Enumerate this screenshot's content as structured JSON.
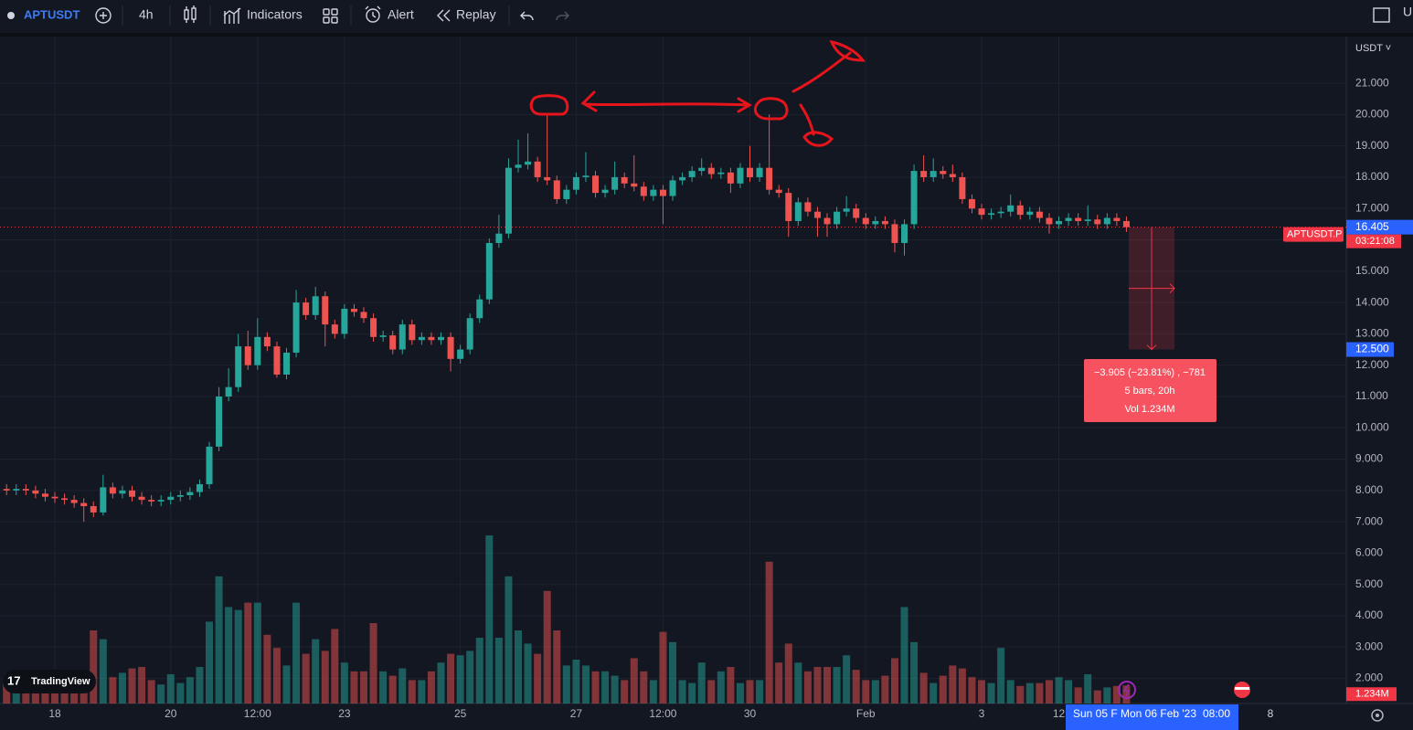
{
  "toolbar": {
    "symbol": "APTUSDT",
    "interval": "4h",
    "indicators": "Indicators",
    "alert": "Alert",
    "replay": "Replay",
    "right_cut": "U"
  },
  "price_axis": {
    "currency": "USDT ˅",
    "current_price": {
      "value": 16.405,
      "label": "16.405"
    },
    "countdown": "03:21:08",
    "symbol_tag": "APTUSDT.P",
    "measure_target": {
      "value": 12.5,
      "label": "12.500"
    },
    "volume_tag": "1.234M"
  },
  "measure": {
    "line1": "−3.905 (−23.81%) , −781",
    "line2": "5 bars, 20h",
    "line3": "Vol 1.234M"
  },
  "time_axis": {
    "crosshair_left": "Sun 05 F",
    "crosshair_date": "Mon 06 Feb '23",
    "crosshair_time": "08:00",
    "future_label": "8"
  },
  "logo": "TradingView",
  "chart_data": {
    "type": "candlestick",
    "up_color": "#26a69a",
    "down_color": "#ef5350",
    "ylim": [
      1.2,
      22.49
    ],
    "yticks": [
      {
        "value": 2,
        "label": "2.000"
      },
      {
        "value": 3,
        "label": "3.000"
      },
      {
        "value": 4,
        "label": "4.000"
      },
      {
        "value": 5,
        "label": "5.000"
      },
      {
        "value": 6,
        "label": "6.000"
      },
      {
        "value": 7,
        "label": "7.000"
      },
      {
        "value": 8,
        "label": "8.000"
      },
      {
        "value": 9,
        "label": "9.000"
      },
      {
        "value": 10,
        "label": "10.000"
      },
      {
        "value": 11,
        "label": "11.000"
      },
      {
        "value": 12,
        "label": "12.000"
      },
      {
        "value": 13,
        "label": "13.000"
      },
      {
        "value": 14,
        "label": "14.000"
      },
      {
        "value": 15,
        "label": "15.000"
      },
      {
        "value": 16,
        "label": "16.000"
      },
      {
        "value": 17,
        "label": "17.000"
      },
      {
        "value": 18,
        "label": "18.000"
      },
      {
        "value": 19,
        "label": "19.000"
      },
      {
        "value": 20,
        "label": "20.000"
      },
      {
        "value": 21,
        "label": "21.000"
      }
    ],
    "grid": true,
    "categories": [
      null,
      null,
      null,
      null,
      null,
      "18",
      null,
      null,
      null,
      null,
      null,
      null,
      null,
      null,
      null,
      null,
      null,
      "20",
      null,
      null,
      null,
      null,
      null,
      null,
      null,
      null,
      "12:00",
      null,
      null,
      null,
      null,
      null,
      null,
      null,
      null,
      "23",
      null,
      null,
      null,
      null,
      null,
      null,
      null,
      null,
      null,
      null,
      null,
      "25",
      null,
      null,
      null,
      null,
      null,
      null,
      null,
      null,
      null,
      null,
      null,
      "27",
      null,
      null,
      null,
      null,
      null,
      null,
      null,
      null,
      "12:00",
      null,
      null,
      null,
      null,
      null,
      null,
      null,
      null,
      "30",
      null,
      null,
      null,
      null,
      null,
      null,
      null,
      null,
      null,
      null,
      null,
      "Feb",
      null,
      null,
      null,
      null,
      null,
      null,
      null,
      null,
      null,
      null,
      null,
      "3",
      null,
      null,
      null,
      null,
      null,
      null,
      null,
      "12",
      null,
      null,
      null,
      null,
      null,
      null,
      null
    ],
    "candles": [
      [
        8.05,
        8.2,
        7.85,
        8.0
      ],
      [
        8.0,
        8.2,
        7.85,
        8.05
      ],
      [
        8.05,
        8.2,
        7.85,
        8.0
      ],
      [
        8.0,
        8.15,
        7.75,
        7.9
      ],
      [
        7.9,
        8.05,
        7.65,
        7.8
      ],
      [
        7.8,
        7.95,
        7.6,
        7.75
      ],
      [
        7.75,
        7.9,
        7.55,
        7.7
      ],
      [
        7.7,
        7.85,
        7.45,
        7.6
      ],
      [
        7.6,
        7.75,
        7.0,
        7.5
      ],
      [
        7.5,
        7.65,
        7.15,
        7.3
      ],
      [
        7.3,
        8.5,
        7.2,
        8.1
      ],
      [
        8.1,
        8.25,
        7.75,
        7.9
      ],
      [
        7.9,
        8.15,
        7.75,
        8.0
      ],
      [
        8.0,
        8.15,
        7.65,
        7.8
      ],
      [
        7.8,
        7.95,
        7.55,
        7.7
      ],
      [
        7.7,
        7.85,
        7.5,
        7.65
      ],
      [
        7.65,
        7.85,
        7.5,
        7.7
      ],
      [
        7.7,
        7.95,
        7.55,
        7.8
      ],
      [
        7.8,
        8.0,
        7.65,
        7.85
      ],
      [
        7.85,
        8.1,
        7.7,
        7.95
      ],
      [
        7.95,
        8.35,
        7.8,
        8.2
      ],
      [
        8.2,
        9.55,
        8.05,
        9.4
      ],
      [
        9.4,
        11.3,
        9.25,
        11.0
      ],
      [
        11.0,
        11.9,
        10.85,
        11.3
      ],
      [
        11.3,
        13.0,
        11.15,
        12.6
      ],
      [
        12.6,
        13.1,
        11.85,
        12.0
      ],
      [
        12.0,
        13.5,
        11.85,
        12.9
      ],
      [
        12.9,
        13.05,
        12.45,
        12.6
      ],
      [
        12.6,
        12.75,
        11.6,
        11.7
      ],
      [
        11.7,
        12.55,
        11.55,
        12.4
      ],
      [
        12.4,
        14.4,
        12.25,
        14.0
      ],
      [
        14.0,
        14.15,
        13.45,
        13.6
      ],
      [
        13.6,
        14.5,
        13.45,
        14.2
      ],
      [
        14.2,
        14.35,
        12.6,
        13.3
      ],
      [
        13.3,
        13.45,
        12.85,
        13.0
      ],
      [
        13.0,
        13.95,
        12.85,
        13.8
      ],
      [
        13.8,
        13.95,
        13.55,
        13.7
      ],
      [
        13.7,
        13.85,
        13.35,
        13.5
      ],
      [
        13.5,
        13.65,
        12.75,
        12.9
      ],
      [
        12.9,
        13.1,
        12.75,
        12.95
      ],
      [
        12.95,
        13.1,
        12.35,
        12.5
      ],
      [
        12.5,
        13.45,
        12.35,
        13.3
      ],
      [
        13.3,
        13.45,
        12.65,
        12.8
      ],
      [
        12.8,
        13.05,
        12.65,
        12.9
      ],
      [
        12.9,
        13.05,
        12.65,
        12.8
      ],
      [
        12.8,
        13.05,
        12.65,
        12.9
      ],
      [
        12.9,
        13.05,
        11.8,
        12.2
      ],
      [
        12.2,
        12.65,
        12.05,
        12.5
      ],
      [
        12.5,
        13.65,
        12.35,
        13.5
      ],
      [
        13.5,
        14.25,
        13.35,
        14.1
      ],
      [
        14.1,
        16.05,
        13.95,
        15.9
      ],
      [
        15.9,
        16.8,
        15.75,
        16.2
      ],
      [
        16.2,
        18.6,
        16.05,
        18.3
      ],
      [
        18.3,
        19.2,
        18.15,
        18.4
      ],
      [
        18.4,
        19.4,
        18.25,
        18.5
      ],
      [
        18.5,
        18.65,
        17.85,
        18.0
      ],
      [
        18.0,
        20.0,
        17.75,
        17.9
      ],
      [
        17.9,
        18.05,
        17.15,
        17.3
      ],
      [
        17.3,
        17.75,
        17.15,
        17.6
      ],
      [
        17.6,
        18.15,
        17.45,
        18.0
      ],
      [
        18.0,
        18.8,
        17.85,
        18.05
      ],
      [
        18.05,
        18.2,
        17.35,
        17.5
      ],
      [
        17.5,
        17.75,
        17.35,
        17.6
      ],
      [
        17.6,
        18.5,
        17.45,
        18.0
      ],
      [
        18.0,
        18.15,
        17.65,
        17.8
      ],
      [
        17.8,
        18.7,
        17.55,
        17.7
      ],
      [
        17.7,
        17.85,
        17.25,
        17.4
      ],
      [
        17.4,
        17.75,
        17.25,
        17.6
      ],
      [
        17.6,
        17.75,
        16.5,
        17.4
      ],
      [
        17.4,
        18.05,
        17.25,
        17.9
      ],
      [
        17.9,
        18.15,
        17.75,
        18.0
      ],
      [
        18.0,
        18.35,
        17.85,
        18.2
      ],
      [
        18.2,
        18.6,
        18.05,
        18.3
      ],
      [
        18.3,
        18.45,
        17.95,
        18.1
      ],
      [
        18.1,
        18.3,
        17.95,
        18.15
      ],
      [
        18.15,
        18.3,
        17.5,
        17.8
      ],
      [
        17.8,
        18.45,
        17.65,
        18.3
      ],
      [
        18.3,
        19.0,
        17.85,
        18.0
      ],
      [
        18.0,
        18.45,
        17.85,
        18.3
      ],
      [
        18.3,
        20.0,
        17.45,
        17.6
      ],
      [
        17.6,
        17.75,
        17.35,
        17.5
      ],
      [
        17.5,
        17.65,
        16.1,
        16.6
      ],
      [
        16.6,
        17.35,
        16.45,
        17.2
      ],
      [
        17.2,
        17.35,
        16.75,
        16.9
      ],
      [
        16.9,
        17.05,
        16.1,
        16.7
      ],
      [
        16.7,
        16.85,
        16.1,
        16.5
      ],
      [
        16.5,
        17.05,
        16.35,
        16.9
      ],
      [
        16.9,
        17.4,
        16.75,
        17.0
      ],
      [
        17.0,
        17.15,
        16.55,
        16.7
      ],
      [
        16.7,
        16.85,
        16.35,
        16.5
      ],
      [
        16.5,
        16.75,
        16.35,
        16.6
      ],
      [
        16.6,
        16.75,
        16.35,
        16.5
      ],
      [
        16.5,
        16.65,
        15.6,
        15.9
      ],
      [
        15.9,
        16.65,
        15.5,
        16.5
      ],
      [
        16.5,
        18.4,
        16.35,
        18.2
      ],
      [
        18.2,
        18.7,
        17.85,
        18.0
      ],
      [
        18.0,
        18.6,
        17.85,
        18.2
      ],
      [
        18.2,
        18.35,
        17.95,
        18.1
      ],
      [
        18.1,
        18.4,
        17.85,
        18.0
      ],
      [
        18.0,
        18.15,
        17.15,
        17.3
      ],
      [
        17.3,
        17.45,
        16.85,
        17.0
      ],
      [
        17.0,
        17.15,
        16.65,
        16.8
      ],
      [
        16.8,
        17.0,
        16.65,
        16.85
      ],
      [
        16.85,
        17.05,
        16.7,
        16.9
      ],
      [
        16.9,
        17.45,
        16.75,
        17.1
      ],
      [
        17.1,
        17.25,
        16.65,
        16.8
      ],
      [
        16.8,
        17.05,
        16.65,
        16.9
      ],
      [
        16.9,
        17.05,
        16.55,
        16.7
      ],
      [
        16.7,
        16.85,
        16.2,
        16.5
      ],
      [
        16.5,
        16.75,
        16.35,
        16.6
      ],
      [
        16.6,
        16.85,
        16.45,
        16.7
      ],
      [
        16.7,
        16.85,
        16.45,
        16.6
      ],
      [
        16.6,
        17.1,
        16.45,
        16.65
      ],
      [
        16.65,
        16.8,
        16.35,
        16.5
      ],
      [
        16.5,
        16.85,
        16.35,
        16.7
      ],
      [
        16.7,
        16.85,
        16.45,
        16.6
      ],
      [
        16.6,
        16.75,
        16.25,
        16.405
      ]
    ],
    "volume": [
      1.6,
      1.4,
      1.7,
      1.5,
      1.3,
      1.2,
      1.6,
      1.5,
      2.0,
      5.0,
      4.4,
      1.8,
      2.1,
      2.4,
      2.5,
      1.6,
      1.3,
      2.0,
      1.4,
      1.8,
      2.5,
      5.6,
      8.7,
      6.6,
      6.4,
      6.9,
      6.9,
      4.7,
      3.8,
      2.6,
      6.9,
      3.4,
      4.4,
      3.6,
      5.1,
      2.8,
      2.2,
      2.2,
      5.5,
      2.2,
      1.9,
      2.4,
      1.6,
      1.6,
      2.2,
      2.8,
      3.4,
      3.3,
      3.6,
      4.5,
      11.5,
      4.5,
      8.7,
      5.0,
      4.1,
      3.4,
      7.7,
      5.0,
      2.6,
      3.0,
      2.6,
      2.2,
      2.2,
      1.9,
      1.6,
      3.1,
      2.2,
      1.6,
      4.9,
      4.2,
      1.6,
      1.4,
      2.8,
      1.6,
      2.2,
      2.5,
      1.4,
      1.6,
      1.6,
      9.7,
      2.8,
      4.1,
      2.8,
      2.2,
      2.5,
      2.5,
      2.5,
      3.3,
      2.3,
      1.6,
      1.6,
      1.9,
      3.1,
      6.6,
      4.2,
      2.1,
      1.4,
      1.9,
      2.6,
      2.4,
      1.8,
      1.6,
      1.4,
      3.8,
      1.6,
      1.2,
      1.4,
      1.4,
      1.6,
      1.8,
      1.6,
      1.1,
      2.0,
      0.9,
      1.1,
      1.2,
      1.234
    ]
  }
}
